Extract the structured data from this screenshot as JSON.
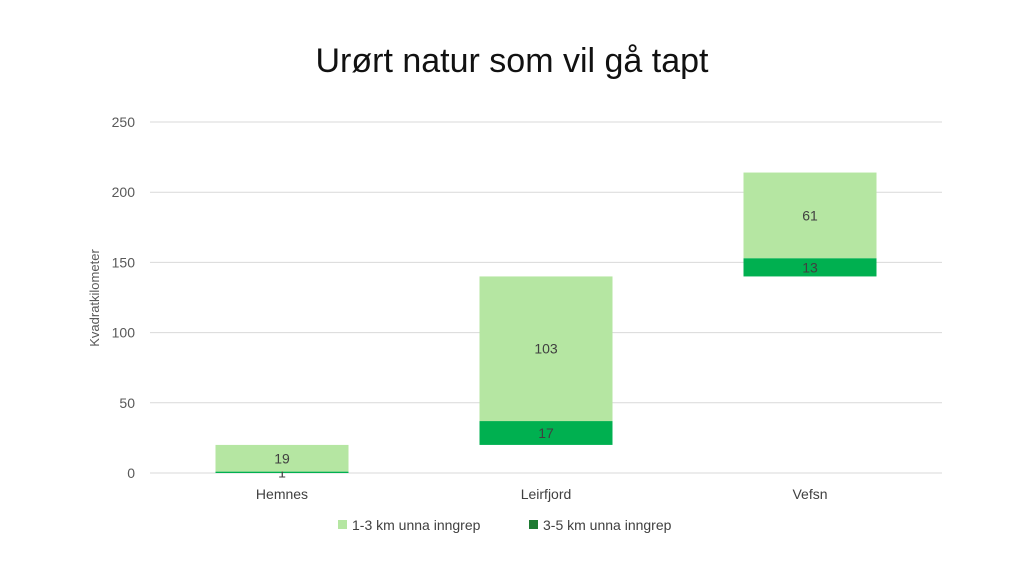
{
  "chart_data": {
    "type": "bar",
    "stacked": true,
    "title": "Urørt natur som vil gå tapt",
    "xlabel": "",
    "ylabel": "Kvadratkilometer",
    "ylim": [
      0,
      250
    ],
    "yticks": [
      "0",
      "50",
      "100",
      "150",
      "200",
      "250"
    ],
    "grid": true,
    "legend_position": "bottom",
    "categories": [
      "Hemnes",
      "Leirfjord",
      "Vefsn"
    ],
    "base_offsets": [
      0,
      20,
      140
    ],
    "series": [
      {
        "name": "3-5 km unna inngrep",
        "color": "#00b050",
        "legend_color": "#1e7a32",
        "values": [
          1,
          17,
          13
        ],
        "labels": [
          "1",
          "17",
          "13"
        ]
      },
      {
        "name": "1-3 km unna inngrep",
        "color": "#b5e6a2",
        "legend_color": "#b5e6a2",
        "values": [
          19,
          103,
          61
        ],
        "labels": [
          "19",
          "103",
          "61"
        ]
      }
    ],
    "legend_order": [
      1,
      0
    ]
  }
}
